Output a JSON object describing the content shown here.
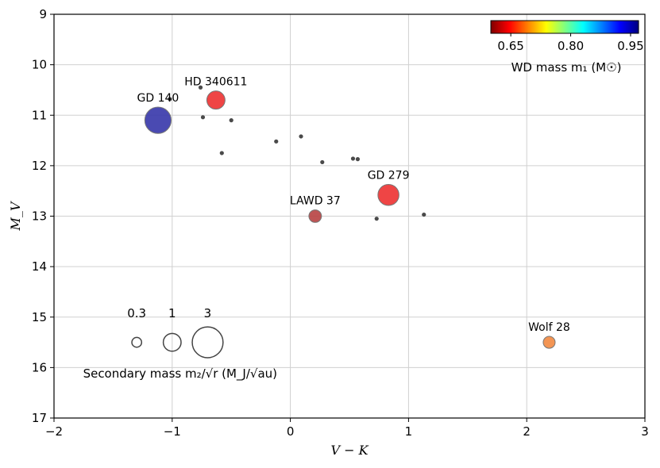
{
  "chart_data": {
    "type": "scatter",
    "xlabel": "V − K",
    "ylabel": "M_V",
    "xlim": [
      -2,
      3
    ],
    "ylim": [
      9,
      17
    ],
    "y_inverted": true,
    "grid": true,
    "xticks": [
      -2,
      -1,
      0,
      1,
      2,
      3
    ],
    "xtick_labels": [
      "−2",
      "−1",
      "0",
      "1",
      "2",
      "3"
    ],
    "yticks": [
      9,
      10,
      11,
      12,
      13,
      14,
      15,
      16,
      17
    ],
    "ytick_labels": [
      "9",
      "10",
      "11",
      "12",
      "13",
      "14",
      "15",
      "16",
      "17"
    ],
    "named_points": [
      {
        "label": "GD 140",
        "x": -1.12,
        "y": 11.1,
        "secondary_mass": 2.2,
        "wd_mass": 0.97,
        "color": "#3b3bab"
      },
      {
        "label": "HD 340611",
        "x": -0.63,
        "y": 10.7,
        "secondary_mass": 1.05,
        "wd_mass": 0.62,
        "color": "#ee3535"
      },
      {
        "label": "LAWD 37",
        "x": 0.21,
        "y": 13.0,
        "secondary_mass": 0.5,
        "wd_mass": 0.61,
        "color": "#b84545"
      },
      {
        "label": "GD 279",
        "x": 0.83,
        "y": 12.58,
        "secondary_mass": 1.4,
        "wd_mass": 0.63,
        "color": "#ee3535"
      },
      {
        "label": "Wolf 28",
        "x": 2.19,
        "y": 15.5,
        "secondary_mass": 0.45,
        "wd_mass": 0.66,
        "color": "#f28c45"
      }
    ],
    "small_points": [
      {
        "x": -0.76,
        "y": 10.45
      },
      {
        "x": -1.02,
        "y": 10.68
      },
      {
        "x": -0.74,
        "y": 11.04
      },
      {
        "x": -0.5,
        "y": 11.1
      },
      {
        "x": -0.58,
        "y": 11.75
      },
      {
        "x": -0.12,
        "y": 11.52
      },
      {
        "x": 0.09,
        "y": 11.42
      },
      {
        "x": 0.27,
        "y": 11.93
      },
      {
        "x": 0.53,
        "y": 11.86
      },
      {
        "x": 0.57,
        "y": 11.87
      },
      {
        "x": 0.73,
        "y": 13.05
      },
      {
        "x": 1.13,
        "y": 12.97
      }
    ],
    "size_legend": {
      "title": "Secondary mass m₂/√r (M_J/√au)",
      "entries": [
        {
          "label": "0.3",
          "value": 0.3,
          "x": -1.3,
          "y": 15.5
        },
        {
          "label": "1",
          "value": 1,
          "x": -1.0,
          "y": 15.5
        },
        {
          "label": "3",
          "value": 3,
          "x": -0.7,
          "y": 15.5
        }
      ]
    },
    "colorbar": {
      "title": "WD mass m₁ (M☉)",
      "min": 0.6,
      "max": 0.97,
      "ticks": [
        0.65,
        0.8,
        0.95
      ],
      "tick_labels": [
        "0.65",
        "0.80",
        "0.95"
      ],
      "colormap": [
        "#7f0000",
        "#ff0000",
        "#ff8000",
        "#ffff00",
        "#80ff80",
        "#00ffff",
        "#0080ff",
        "#0000ff",
        "#00007f"
      ],
      "placement": "top-right"
    }
  }
}
